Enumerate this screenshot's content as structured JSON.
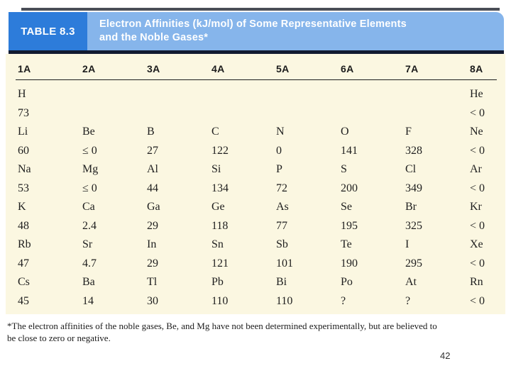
{
  "header": {
    "badge_label": "TABLE 8.3",
    "title_line1": "Electron Affinities (kJ/mol) of Some Representative Elements",
    "title_line2": "and the Noble Gases*"
  },
  "table": {
    "columns": [
      "1A",
      "2A",
      "3A",
      "4A",
      "5A",
      "6A",
      "7A",
      "8A"
    ],
    "rows": [
      [
        {
          "sym": "H",
          "val": "73"
        },
        null,
        null,
        null,
        null,
        null,
        null,
        {
          "sym": "He",
          "val": "< 0"
        }
      ],
      [
        {
          "sym": "Li",
          "val": "60"
        },
        {
          "sym": "Be",
          "val": "≤ 0"
        },
        {
          "sym": "B",
          "val": "27"
        },
        {
          "sym": "C",
          "val": "122"
        },
        {
          "sym": "N",
          "val": "0"
        },
        {
          "sym": "O",
          "val": "141"
        },
        {
          "sym": "F",
          "val": "328"
        },
        {
          "sym": "Ne",
          "val": "< 0"
        }
      ],
      [
        {
          "sym": "Na",
          "val": "53"
        },
        {
          "sym": "Mg",
          "val": "≤ 0"
        },
        {
          "sym": "Al",
          "val": "44"
        },
        {
          "sym": "Si",
          "val": "134"
        },
        {
          "sym": "P",
          "val": "72"
        },
        {
          "sym": "S",
          "val": "200"
        },
        {
          "sym": "Cl",
          "val": "349"
        },
        {
          "sym": "Ar",
          "val": "< 0"
        }
      ],
      [
        {
          "sym": "K",
          "val": "48"
        },
        {
          "sym": "Ca",
          "val": "2.4"
        },
        {
          "sym": "Ga",
          "val": "29"
        },
        {
          "sym": "Ge",
          "val": "118"
        },
        {
          "sym": "As",
          "val": "77"
        },
        {
          "sym": "Se",
          "val": "195"
        },
        {
          "sym": "Br",
          "val": "325"
        },
        {
          "sym": "Kr",
          "val": "< 0"
        }
      ],
      [
        {
          "sym": "Rb",
          "val": "47"
        },
        {
          "sym": "Sr",
          "val": "4.7"
        },
        {
          "sym": "In",
          "val": "29"
        },
        {
          "sym": "Sn",
          "val": "121"
        },
        {
          "sym": "Sb",
          "val": "101"
        },
        {
          "sym": "Te",
          "val": "190"
        },
        {
          "sym": "I",
          "val": "295"
        },
        {
          "sym": "Xe",
          "val": "< 0"
        }
      ],
      [
        {
          "sym": "Cs",
          "val": "45"
        },
        {
          "sym": "Ba",
          "val": "14"
        },
        {
          "sym": "Tl",
          "val": "30"
        },
        {
          "sym": "Pb",
          "val": "110"
        },
        {
          "sym": "Bi",
          "val": "110"
        },
        {
          "sym": "Po",
          "val": "?"
        },
        {
          "sym": "At",
          "val": "?"
        },
        {
          "sym": "Rn",
          "val": "< 0"
        }
      ]
    ]
  },
  "footnote": {
    "line1": "*The electron affinities of the noble gases, Be, and Mg have not been determined experimentally, but are believed to",
    "line2": "be close to zero or negative."
  },
  "slide": {
    "page_number": "42"
  },
  "colors": {
    "badge_blue": "#2d7cda",
    "panel_blue": "#86b5eb",
    "cream_background": "#fbf7e1",
    "navy_rule": "#121a30",
    "grey_rule": "#4a4e57"
  }
}
